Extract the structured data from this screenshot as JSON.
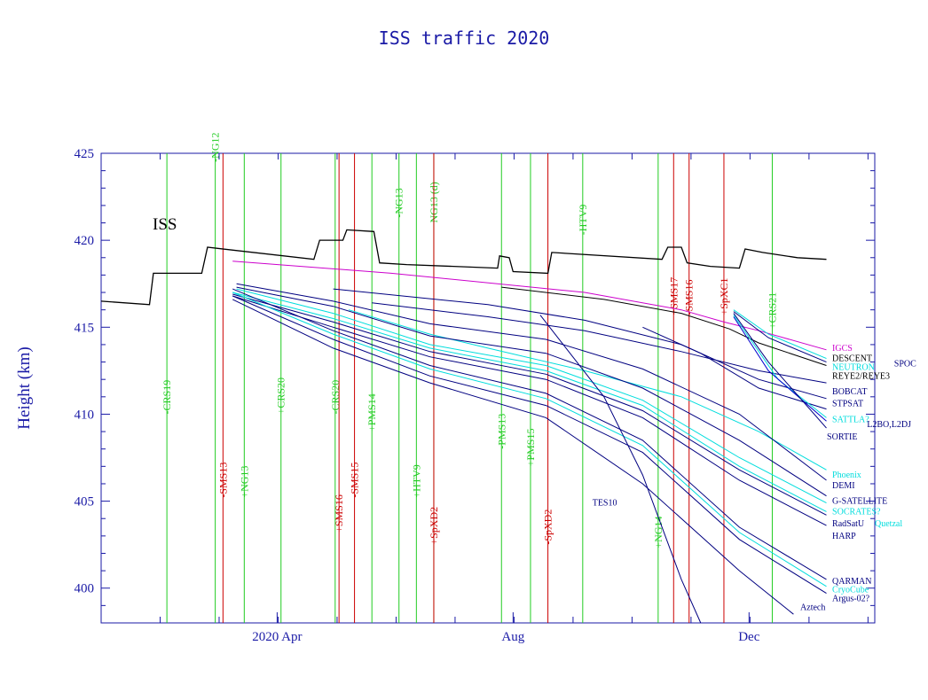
{
  "chart_data": {
    "type": "line",
    "title": "ISS traffic 2020",
    "ylabel": "Height (km)",
    "xlabel": "",
    "xlim": [
      0,
      400
    ],
    "ylim": [
      398,
      425
    ],
    "yticks": [
      "425",
      "420",
      "415",
      "410",
      "405",
      "400"
    ],
    "ytick_values": [
      425,
      420,
      415,
      410,
      405,
      400
    ],
    "xticks": [
      {
        "label": "2020 Apr",
        "day": 91
      },
      {
        "label": "Aug",
        "day": 213
      },
      {
        "label": "Dec",
        "day": 335
      }
    ],
    "colors": {
      "frame": "#1a1aa6",
      "green": "#22cc22",
      "red": "#cc0000",
      "cyan": "#00dddd",
      "navy": "#000080",
      "magenta": "#cc00cc",
      "black": "#000000",
      "blue": "#0000cc"
    },
    "iss_label": "ISS",
    "iss": {
      "name": "ISS",
      "color": "#000000",
      "points": [
        [
          0,
          416.5
        ],
        [
          25,
          416.3
        ],
        [
          27,
          418.1
        ],
        [
          52,
          418.1
        ],
        [
          55,
          419.6
        ],
        [
          110,
          418.9
        ],
        [
          113,
          420.0
        ],
        [
          125,
          420.0
        ],
        [
          127,
          420.6
        ],
        [
          141,
          420.5
        ],
        [
          144,
          418.7
        ],
        [
          158,
          418.6
        ],
        [
          205,
          418.4
        ],
        [
          206,
          419.1
        ],
        [
          211,
          419.0
        ],
        [
          213,
          418.2
        ],
        [
          231,
          418.1
        ],
        [
          233,
          419.3
        ],
        [
          290,
          418.9
        ],
        [
          293,
          419.6
        ],
        [
          300,
          419.6
        ],
        [
          303,
          418.7
        ],
        [
          315,
          418.5
        ],
        [
          330,
          418.4
        ],
        [
          333,
          419.5
        ],
        [
          342,
          419.3
        ],
        [
          360,
          419.0
        ],
        [
          375,
          418.9
        ]
      ]
    },
    "events": [
      {
        "label": "-CRS19",
        "day": 34,
        "color": "green",
        "text_y": 410
      },
      {
        "label": "-NG12",
        "day": 59,
        "color": "green",
        "text_y": 424.5
      },
      {
        "label": "-SMS13",
        "day": 63,
        "color": "red",
        "text_y": 405.2
      },
      {
        "label": "+NG13",
        "day": 74,
        "color": "green",
        "text_y": 405.2
      },
      {
        "label": "+CRS20",
        "day": 93,
        "color": "green",
        "text_y": 410
      },
      {
        "label": "-CRS20",
        "day": 121,
        "color": "green",
        "text_y": 410
      },
      {
        "label": "+SMS16",
        "day": 123,
        "color": "red",
        "text_y": 403.2
      },
      {
        "label": "-SMS15",
        "day": 131,
        "color": "red",
        "text_y": 405.2
      },
      {
        "label": "+PMS14",
        "day": 140,
        "color": "green",
        "text_y": 409
      },
      {
        "label": "-NG13",
        "day": 154,
        "color": "green",
        "text_y": 421.3
      },
      {
        "label": "+HTV9",
        "day": 163,
        "color": "green",
        "text_y": 405.2
      },
      {
        "label": "NG13 (d)",
        "day": 172,
        "color": "green",
        "text_y": 421
      },
      {
        "label": "+SpXD2",
        "day": 172,
        "color": "red",
        "text_y": 402.5
      },
      {
        "label": "-PMS13",
        "day": 207,
        "color": "green",
        "text_y": 408
      },
      {
        "label": "+PMS15",
        "day": 222,
        "color": "green",
        "text_y": 407
      },
      {
        "label": "-SpXD2",
        "day": 231,
        "color": "red",
        "text_y": 402.5
      },
      {
        "label": "-HTV9",
        "day": 249,
        "color": "green",
        "text_y": 420.3
      },
      {
        "label": "+NG14",
        "day": 288,
        "color": "green",
        "text_y": 402.3
      },
      {
        "label": "+SMS17",
        "day": 296,
        "color": "red",
        "text_y": 415.7
      },
      {
        "label": "-SMS16",
        "day": 304,
        "color": "red",
        "text_y": 415.7
      },
      {
        "label": "+SpXC1",
        "day": 322,
        "color": "red",
        "text_y": 415.7
      },
      {
        "label": "+CRS21",
        "day": 347,
        "color": "green",
        "text_y": 414.9
      }
    ],
    "series": [
      {
        "name": "IGCS",
        "color": "#cc00cc",
        "points": [
          [
            68,
            418.8
          ],
          [
            150,
            418.1
          ],
          [
            250,
            417.0
          ],
          [
            300,
            416.0
          ],
          [
            322,
            415.3
          ],
          [
            340,
            414.8
          ],
          [
            375,
            413.7
          ]
        ]
      },
      {
        "name": "DESCENT",
        "color": "#000000",
        "points": [
          [
            207,
            417.3
          ],
          [
            260,
            416.6
          ],
          [
            300,
            415.8
          ],
          [
            325,
            414.9
          ],
          [
            340,
            414.1
          ],
          [
            375,
            412.8
          ]
        ]
      },
      {
        "name": "NEUTRON",
        "color": "#00dddd",
        "points": [
          [
            327,
            416.0
          ],
          [
            345,
            414.6
          ],
          [
            375,
            413.2
          ]
        ]
      },
      {
        "name": "SPOC",
        "color": "#000080",
        "points": [
          [
            327,
            415.9
          ],
          [
            345,
            414.4
          ],
          [
            375,
            413.0
          ]
        ]
      },
      {
        "name": "REYE2/REYE3",
        "color": "#000080",
        "points": [
          [
            140,
            416.4
          ],
          [
            200,
            415.6
          ],
          [
            250,
            414.8
          ],
          [
            300,
            413.6
          ],
          [
            340,
            412.5
          ],
          [
            375,
            411.8
          ]
        ]
      },
      {
        "name": "BOBCAT",
        "color": "#000080",
        "points": [
          [
            120,
            417.2
          ],
          [
            200,
            416.3
          ],
          [
            250,
            415.4
          ],
          [
            300,
            414.0
          ],
          [
            340,
            412.0
          ],
          [
            375,
            410.9
          ]
        ]
      },
      {
        "name": "STPSAT",
        "color": "#000080",
        "points": [
          [
            280,
            415.0
          ],
          [
            310,
            413.5
          ],
          [
            340,
            411.5
          ],
          [
            375,
            410.3
          ]
        ]
      },
      {
        "name": "SATTLA?",
        "color": "#00dddd",
        "points": [
          [
            327,
            415.7
          ],
          [
            350,
            412.0
          ],
          [
            375,
            409.8
          ]
        ]
      },
      {
        "name": "L2BO,L2DJ",
        "color": "#0000cc",
        "points": [
          [
            327,
            415.6
          ],
          [
            345,
            412.5
          ],
          [
            375,
            409.6
          ]
        ]
      },
      {
        "name": "SORTIE",
        "color": "#000080",
        "points": [
          [
            327,
            415.8
          ],
          [
            345,
            413.0
          ],
          [
            375,
            409.2
          ]
        ]
      },
      {
        "name": "Phoenix",
        "color": "#00dddd",
        "points": [
          [
            128,
            416.0
          ],
          [
            170,
            414.6
          ],
          [
            200,
            413.8
          ],
          [
            250,
            412.5
          ],
          [
            300,
            411.0
          ],
          [
            340,
            409.0
          ],
          [
            375,
            406.8
          ]
        ]
      },
      {
        "name": "DEMI",
        "color": "#000080",
        "points": [
          [
            70,
            417.5
          ],
          [
            120,
            416.5
          ],
          [
            170,
            415.2
          ],
          [
            230,
            414.3
          ],
          [
            280,
            412.6
          ],
          [
            330,
            410.0
          ],
          [
            375,
            406.2
          ]
        ]
      },
      {
        "name": "G-SATELLITE",
        "color": "#000080",
        "points": [
          [
            70,
            417.3
          ],
          [
            120,
            416.2
          ],
          [
            170,
            414.5
          ],
          [
            230,
            413.5
          ],
          [
            280,
            411.5
          ],
          [
            330,
            408.5
          ],
          [
            375,
            405.3
          ]
        ]
      },
      {
        "name": "SOCRATES?",
        "color": "#00dddd",
        "points": [
          [
            70,
            417.2
          ],
          [
            120,
            415.8
          ],
          [
            170,
            414.0
          ],
          [
            230,
            412.8
          ],
          [
            280,
            410.8
          ],
          [
            330,
            407.5
          ],
          [
            375,
            404.9
          ]
        ]
      },
      {
        "name": "Quetzal",
        "color": "#00dddd",
        "points": [
          [
            68,
            417.0
          ],
          [
            120,
            415.5
          ],
          [
            170,
            413.8
          ],
          [
            230,
            412.5
          ],
          [
            280,
            410.5
          ],
          [
            330,
            407.0
          ],
          [
            375,
            404.4
          ]
        ]
      },
      {
        "name": "RadSatU",
        "color": "#000080",
        "points": [
          [
            68,
            416.9
          ],
          [
            120,
            415.3
          ],
          [
            170,
            413.6
          ],
          [
            230,
            412.3
          ],
          [
            280,
            410.2
          ],
          [
            330,
            406.8
          ],
          [
            375,
            404.2
          ]
        ]
      },
      {
        "name": "HARP",
        "color": "#000080",
        "points": [
          [
            68,
            416.8
          ],
          [
            120,
            415.0
          ],
          [
            170,
            413.3
          ],
          [
            230,
            412.0
          ],
          [
            280,
            409.8
          ],
          [
            330,
            406.2
          ],
          [
            375,
            403.6
          ]
        ]
      },
      {
        "name": "QARMAN",
        "color": "#000080",
        "points": [
          [
            68,
            417.2
          ],
          [
            120,
            414.8
          ],
          [
            170,
            412.8
          ],
          [
            230,
            411.2
          ],
          [
            280,
            408.5
          ],
          [
            330,
            403.5
          ],
          [
            375,
            400.5
          ]
        ]
      },
      {
        "name": "CryoCube",
        "color": "#00dddd",
        "points": [
          [
            68,
            417.0
          ],
          [
            120,
            414.6
          ],
          [
            170,
            412.6
          ],
          [
            230,
            410.9
          ],
          [
            280,
            408.2
          ],
          [
            330,
            403.2
          ],
          [
            375,
            400.1
          ]
        ]
      },
      {
        "name": "Argus-02?",
        "color": "#000080",
        "points": [
          [
            68,
            416.8
          ],
          [
            120,
            414.3
          ],
          [
            170,
            412.2
          ],
          [
            230,
            410.5
          ],
          [
            280,
            407.8
          ],
          [
            330,
            402.8
          ],
          [
            375,
            399.7
          ]
        ]
      },
      {
        "name": "Aztech",
        "color": "#000080",
        "points": [
          [
            68,
            416.6
          ],
          [
            120,
            413.8
          ],
          [
            170,
            411.8
          ],
          [
            230,
            409.8
          ],
          [
            280,
            406.0
          ],
          [
            330,
            401.0
          ],
          [
            358,
            398.5
          ]
        ]
      },
      {
        "name": "TES10",
        "color": "#000080",
        "points": [
          [
            227,
            415.7
          ],
          [
            260,
            411.0
          ],
          [
            280,
            406.5
          ],
          [
            300,
            400.5
          ],
          [
            310,
            398.0
          ]
        ]
      }
    ],
    "labels": [
      {
        "text": "IGCS",
        "color": "#cc00cc",
        "y": 413.8
      },
      {
        "text": "DESCENT",
        "color": "#000000",
        "y": 413.2
      },
      {
        "text": "NEUTRON",
        "color": "#00dddd",
        "y": 412.7
      },
      {
        "text": "SPOC",
        "color": "#000080",
        "y": 412.9,
        "col": 2
      },
      {
        "text": "REYE2/REYE3",
        "color": "#000000",
        "y": 412.2
      },
      {
        "text": "BOBCAT",
        "color": "#000080",
        "y": 411.3
      },
      {
        "text": "STPSAT",
        "color": "#000080",
        "y": 410.6
      },
      {
        "text": "SATTLA?",
        "color": "#00dddd",
        "y": 409.7
      },
      {
        "text": "L2BO,L2DJ",
        "color": "#000080",
        "y": 409.4,
        "col": 2
      },
      {
        "text": "SORTIE",
        "color": "#000080",
        "y": 408.7,
        "dx": -6
      },
      {
        "text": "Phoenix",
        "color": "#00dddd",
        "y": 406.5
      },
      {
        "text": "DEMI",
        "color": "#000080",
        "y": 405.9
      },
      {
        "text": "G-SATELLITE",
        "color": "#000080",
        "y": 405.0
      },
      {
        "text": "SOCRATES?",
        "color": "#00dddd",
        "y": 404.4
      },
      {
        "text": "RadSatU",
        "color": "#000080",
        "y": 403.7
      },
      {
        "text": "Quetzal",
        "color": "#00dddd",
        "y": 403.7,
        "col": 2
      },
      {
        "text": "HARP",
        "color": "#000080",
        "y": 403.0
      },
      {
        "text": "QARMAN",
        "color": "#000080",
        "y": 400.4
      },
      {
        "text": "CryoCube",
        "color": "#00dddd",
        "y": 399.9
      },
      {
        "text": "Argus-02?",
        "color": "#000080",
        "y": 399.4
      },
      {
        "text": "Aztech",
        "color": "#000080",
        "y": 398.9,
        "dx": -36
      },
      {
        "text": "TES10",
        "color": "#000080",
        "y": 404.9,
        "day": 254
      }
    ]
  }
}
